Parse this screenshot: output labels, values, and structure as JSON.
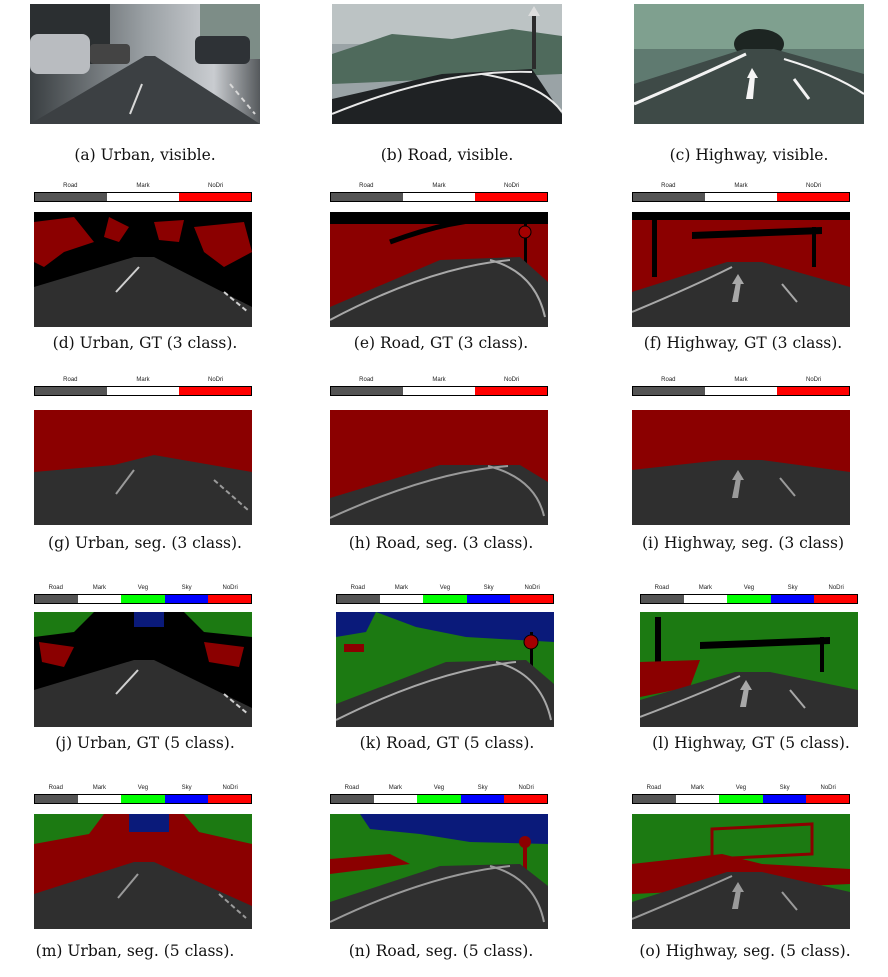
{
  "captions": {
    "a": "(a) Urban, visible.",
    "b": "(b) Road, visible.",
    "c": "(c) Highway, visible.",
    "d": "(d) Urban, GT (3 class).",
    "e": "(e) Road, GT (3 class).",
    "f": "(f) Highway, GT (3 class).",
    "g": "(g) Urban, seg. (3 class).",
    "h": "(h) Road, seg. (3 class).",
    "i": "(i) Highway, seg. (3 class)",
    "j": "(j) Urban, GT (5 class).",
    "k": "(k) Road, GT (5 class).",
    "l": "(l) Highway, GT (5 class).",
    "m": "(m) Urban, seg. (5 class).",
    "n": "(n) Road, seg. (5 class).",
    "o": "(o) Highway, seg. (5 class)."
  },
  "legend3": [
    "Road",
    "Mark",
    "NoDri"
  ],
  "legend5": [
    "Road",
    "Mark",
    "Veg",
    "Sky",
    "NoDri"
  ],
  "colors": {
    "road": "#545454",
    "mark": "#ffffff",
    "veg": "#00ff00",
    "sky": "#0000ff",
    "nodri": "#ff0000",
    "seg_road": "#2f2f2f",
    "seg_mark": "#9a9a9a",
    "seg_nodri": "#8b0000",
    "seg_veg": "#1c7a12",
    "seg_sky": "#0a1a7a"
  }
}
